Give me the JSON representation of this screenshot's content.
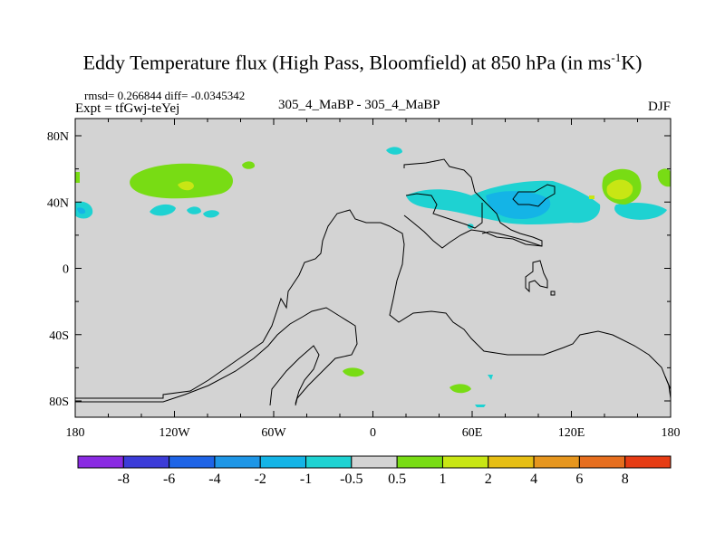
{
  "title": {
    "main": "Eddy Temperature flux (High Pass, Bloomfield) at 850 hPa (in ms",
    "sup": "-1",
    "end": "K)"
  },
  "stats": "rmsd= 0.266844 diff= -0.0345342",
  "expt": "Expt = tfGwj-teYej",
  "case": "305_4_MaBP - 305_4_MaBP",
  "season": "DJF",
  "map": {
    "lon_ticks": [
      "180",
      "120W",
      "60W",
      "0",
      "60E",
      "120E",
      "180"
    ],
    "lat_ticks": [
      "80N",
      "40N",
      "0",
      "40S",
      "80S"
    ],
    "background_color": "#d3d3d3"
  },
  "colorbar": {
    "labels": [
      "-8",
      "-6",
      "-4",
      "-2",
      "-1",
      "-0.5",
      "0.5",
      "1",
      "2",
      "4",
      "6",
      "8"
    ],
    "colors": [
      "#8a2be2",
      "#3c3cd8",
      "#1e64e6",
      "#1e96e6",
      "#14b4e6",
      "#1ed2d2",
      "#d3d3d3",
      "#78dc14",
      "#c8e614",
      "#e6be14",
      "#e6961e",
      "#e66e1e",
      "#e63c14"
    ]
  }
}
